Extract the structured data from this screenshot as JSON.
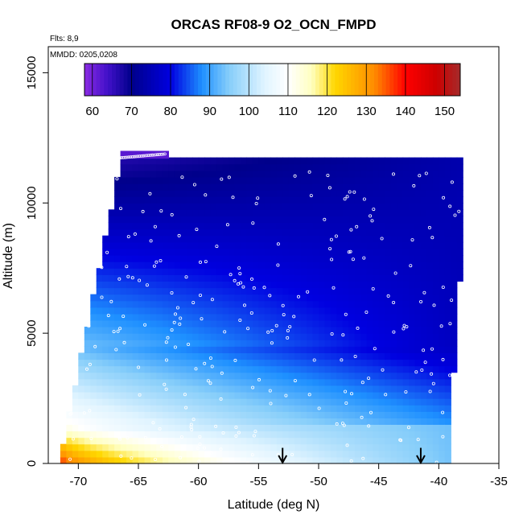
{
  "chart_data": {
    "type": "heatmap",
    "title": "ORCAS RF08-9 O2_OCN_FMPD",
    "notes": {
      "flights": "Flts: 8,9",
      "dates": "MMDD: 0205,0208"
    },
    "xlabel": "Latitude (deg N)",
    "ylabel": "Altitude (m)",
    "xlim": [
      -72.5,
      -35
    ],
    "ylim": [
      0,
      16000
    ],
    "x_ticks": [
      -70,
      -65,
      -60,
      -55,
      -50,
      -45,
      -40,
      -35
    ],
    "y_ticks": [
      0,
      5000,
      10000,
      15000
    ],
    "colorbar": {
      "range": [
        58,
        154
      ],
      "ticks": [
        60,
        70,
        80,
        90,
        100,
        110,
        120,
        130,
        140,
        150
      ],
      "stops": [
        {
          "v": 58,
          "c": "#8a2be2"
        },
        {
          "v": 64,
          "c": "#4010c8"
        },
        {
          "v": 70,
          "c": "#00008b"
        },
        {
          "v": 80,
          "c": "#0000e0"
        },
        {
          "v": 88,
          "c": "#1e90ff"
        },
        {
          "v": 95,
          "c": "#87cefa"
        },
        {
          "v": 104,
          "c": "#e0f4ff"
        },
        {
          "v": 110,
          "c": "#ffffff"
        },
        {
          "v": 116,
          "c": "#ffffc0"
        },
        {
          "v": 122,
          "c": "#ffd700"
        },
        {
          "v": 132,
          "c": "#ff8c00"
        },
        {
          "v": 140,
          "c": "#ff0000"
        },
        {
          "v": 148,
          "c": "#cc0000"
        },
        {
          "v": 154,
          "c": "#a52a2a"
        }
      ]
    },
    "data_extent": {
      "lat_min": -71.5,
      "lat_max": -38,
      "alt_top_south": 11700,
      "alt_top_north": 11700
    },
    "profile_trend": {
      "description_points": [
        {
          "alt": 0,
          "lat_south_value": 140,
          "lat_north_value": 92
        },
        {
          "alt": 1000,
          "lat_south_value": 118,
          "lat_north_value": 92
        },
        {
          "alt": 3000,
          "lat_south_value": 96,
          "lat_north_value": 85
        },
        {
          "alt": 5000,
          "lat_south_value": 90,
          "lat_north_value": 78
        },
        {
          "alt": 8000,
          "lat_south_value": 80,
          "lat_north_value": 76
        },
        {
          "alt": 11000,
          "lat_south_value": 66,
          "lat_north_value": 74
        }
      ]
    },
    "arrows_lat": [
      -53,
      -41.5
    ],
    "colors": {
      "sample_marker": "#ffffff",
      "frame": "#000000"
    }
  }
}
